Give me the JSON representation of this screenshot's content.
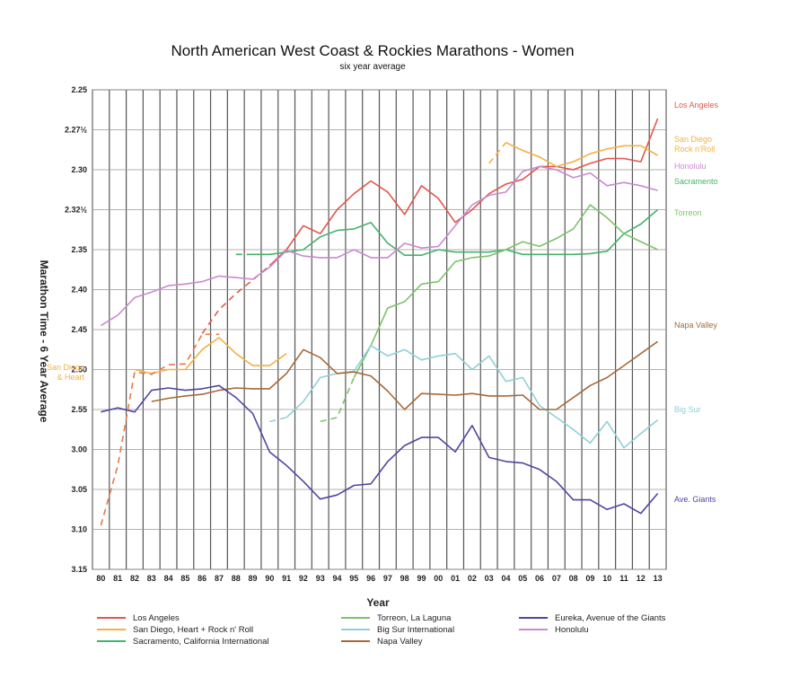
{
  "chart_data": {
    "type": "line",
    "title": "North American West Coast & Rockies Marathons - Women",
    "subtitle": "six year average",
    "xlabel": "Year",
    "ylabel": "Marathon Time - 6 Year Average",
    "x_ticks": [
      "80",
      "81",
      "82",
      "83",
      "84",
      "85",
      "86",
      "87",
      "88",
      "89",
      "90",
      "91",
      "92",
      "93",
      "94",
      "95",
      "96",
      "97",
      "98",
      "99",
      "00",
      "01",
      "02",
      "03",
      "04",
      "05",
      "06",
      "07",
      "08",
      "09",
      "10",
      "11",
      "12",
      "13"
    ],
    "y_ticks": [
      "2.25",
      "2.27½",
      "2.30",
      "2.32½",
      "2.35",
      "2.40",
      "2.45",
      "2.50",
      "2.55",
      "3.00",
      "3.05",
      "3.10",
      "3.15"
    ],
    "y_tick_values": [
      145,
      147.5,
      150,
      152.5,
      155,
      160,
      165,
      170,
      175,
      180,
      185,
      190,
      195
    ],
    "y_scale": "compressed near the top: 2.25 to 2.35 marked every 2½ minutes, then every 5 minutes",
    "y_inverted": true,
    "ylim": [
      145,
      195
    ],
    "grid": true,
    "series": [
      {
        "name": "Los Angeles",
        "end_label": "Los Angeles",
        "color": "#e2574c",
        "x": [
          1986,
          1987,
          1988,
          1989,
          1990,
          1991,
          1992,
          1993,
          1994,
          1995,
          1996,
          1997,
          1998,
          1999,
          2000,
          2001,
          2002,
          2003,
          2004,
          2005,
          2006,
          2007,
          2008,
          2009,
          2010,
          2011,
          2012,
          2013
        ],
        "y": [
          165.5,
          162.5,
          160.5,
          158.8,
          157,
          155,
          153.5,
          154,
          152.5,
          151.5,
          150.7,
          151.4,
          152.8,
          151,
          151.8,
          153.3,
          152.5,
          151.5,
          150.9,
          150.6,
          149.8,
          149.8,
          150,
          149.6,
          149.3,
          149.3,
          149.5,
          146.8
        ],
        "dashed_until": 1990
      },
      {
        "name": "San Diego, Heart + Rock n' Roll",
        "end_label": "San Diego Rock n'Roll",
        "color": "#f5b041",
        "x": [
          1982,
          1983,
          1984,
          1985,
          1986,
          1987,
          1988,
          1989,
          1990,
          1991
        ],
        "y": [
          170,
          170.5,
          170,
          170,
          167.5,
          166,
          168,
          169.5,
          169.5,
          168
        ],
        "x2": [
          2003,
          2004,
          2005,
          2006,
          2007,
          2008,
          2009,
          2010,
          2011,
          2012,
          2013
        ],
        "y2": [
          149.6,
          148.3,
          148.8,
          149.2,
          149.8,
          149.5,
          149,
          148.7,
          148.5,
          148.5,
          149.1
        ],
        "dashed_x2_until": 2004
      },
      {
        "name": "Sacramento, California International",
        "end_label": "Sacramento",
        "color": "#45b36b",
        "x": [
          1988,
          1989,
          1990,
          1991,
          1992,
          1993,
          1994,
          1995,
          1996,
          1997,
          1998,
          1999,
          2000,
          2001,
          2002,
          2003,
          2004,
          2005,
          2006,
          2007,
          2008,
          2009,
          2010,
          2011,
          2012,
          2013
        ],
        "y": [
          155.6,
          155.6,
          155.6,
          155.3,
          155,
          154.2,
          153.8,
          153.7,
          153.3,
          154.6,
          155.7,
          155.7,
          155,
          155.3,
          155.3,
          155.3,
          155,
          155.6,
          155.6,
          155.6,
          155.6,
          155.5,
          155.2,
          154,
          153.4,
          152.5
        ],
        "dashed_until": 1989
      },
      {
        "name": "Torreon, La Laguna",
        "end_label": "Torreon",
        "color": "#7dc36b",
        "x": [
          1993,
          1994,
          1995,
          1996,
          1997,
          1998,
          1999,
          2000,
          2001,
          2002,
          2003,
          2004,
          2005,
          2006,
          2007,
          2008,
          2009,
          2010,
          2011,
          2012,
          2013
        ],
        "y": [
          176.5,
          176,
          171,
          167,
          162.3,
          161.5,
          159.3,
          159,
          156.5,
          156,
          155.8,
          155,
          154.5,
          154.8,
          154.3,
          153.7,
          152.2,
          153,
          154,
          154.5,
          155
        ],
        "dashed_until": 1995
      },
      {
        "name": "Big Sur International",
        "end_label": "Big Sur",
        "color": "#8fd0d8",
        "x": [
          1990,
          1991,
          1992,
          1993,
          1994,
          1995,
          1996,
          1997,
          1998,
          1999,
          2000,
          2001,
          2002,
          2003,
          2004,
          2005,
          2006,
          2007,
          2008,
          2009,
          2010,
          2011,
          2012,
          2013
        ],
        "y": [
          176.5,
          176,
          174,
          171,
          170.5,
          170.2,
          167,
          168.3,
          167.5,
          168.8,
          168.3,
          168,
          170,
          168.3,
          171.5,
          171,
          174.5,
          176,
          177.5,
          179.2,
          176.5,
          179.8,
          178,
          176.3
        ],
        "dashed_until": 1991
      },
      {
        "name": "Napa Valley",
        "end_label": "Napa Valley",
        "color": "#a56a3a",
        "x": [
          1983,
          1984,
          1985,
          1986,
          1987,
          1988,
          1989,
          1990,
          1991,
          1992,
          1993,
          1994,
          1995,
          1996,
          1997,
          1998,
          1999,
          2000,
          2001,
          2002,
          2003,
          2004,
          2005,
          2006,
          2007,
          2008,
          2009,
          2010,
          2011,
          2012,
          2013
        ],
        "y": [
          174,
          173.6,
          173.3,
          173.1,
          172.6,
          172.3,
          172.4,
          172.4,
          170.5,
          167.5,
          168.5,
          170.5,
          170.3,
          170.8,
          172.7,
          175,
          173,
          173.1,
          173.2,
          173,
          173.3,
          173.3,
          173.2,
          175,
          175,
          173.5,
          172,
          171,
          169.5,
          168,
          166.5
        ],
        "dashed_until": 1983
      },
      {
        "name": "Eureka, Avenue of the Giants",
        "end_label": "Ave. Giants",
        "color": "#5046a0",
        "x": [
          1980,
          1981,
          1982,
          1983,
          1984,
          1985,
          1986,
          1987,
          1988,
          1989,
          1990,
          1991,
          1992,
          1993,
          1994,
          1995,
          1996,
          1997,
          1998,
          1999,
          2000,
          2001,
          2002,
          2003,
          2004,
          2005,
          2006,
          2007,
          2008,
          2009,
          2010,
          2011,
          2012,
          2013
        ],
        "y": [
          175.3,
          174.8,
          175.3,
          172.6,
          172.3,
          172.6,
          172.4,
          172,
          173.5,
          175.5,
          180.3,
          182,
          184,
          186.2,
          185.7,
          184.5,
          184.3,
          181.5,
          179.5,
          178.5,
          178.5,
          180.3,
          177,
          181,
          181.5,
          181.7,
          182.5,
          184,
          186.3,
          186.3,
          187.5,
          186.8,
          188,
          185.5
        ]
      },
      {
        "name": "Honolulu",
        "end_label": "Honolulu",
        "color": "#c98ad1",
        "x": [
          1980,
          1981,
          1982,
          1983,
          1984,
          1985,
          1986,
          1987,
          1988,
          1989,
          1990,
          1991,
          1992,
          1993,
          1994,
          1995,
          1996,
          1997,
          1998,
          1999,
          2000,
          2001,
          2002,
          2003,
          2004,
          2005,
          2006,
          2007,
          2008,
          2009,
          2010,
          2011,
          2012,
          2013
        ],
        "y": [
          164.5,
          163.2,
          161,
          160.3,
          159.5,
          159.3,
          159,
          158.3,
          158.5,
          158.7,
          157.2,
          155.1,
          155.8,
          156,
          156,
          155,
          156,
          156,
          154.6,
          154.9,
          154.8,
          153.5,
          152.2,
          151.6,
          151.4,
          150.1,
          149.8,
          150,
          150.5,
          150.2,
          151,
          150.8,
          151,
          151.3
        ]
      },
      {
        "name": "San Diego (early, dashed)",
        "end_label": "San Diego & Heart",
        "color": "#e27a4c",
        "x": [
          1980,
          1981,
          1982,
          1983,
          1984,
          1985,
          1986,
          1987
        ],
        "y": [
          189.5,
          182,
          170.3,
          170.6,
          169.4,
          169.3,
          165.6,
          165.6
        ],
        "dashed": true,
        "legend": false
      }
    ],
    "left_label": "San Diego & Heart",
    "legend": [
      {
        "name": "Los Angeles",
        "color": "#e2574c"
      },
      {
        "name": "San Diego, Heart + Rock n' Roll",
        "color": "#f5b041"
      },
      {
        "name": "Sacramento, California International",
        "color": "#45b36b"
      },
      {
        "name": "Torreon, La Laguna",
        "color": "#7dc36b"
      },
      {
        "name": "Big Sur International",
        "color": "#8fd0d8"
      },
      {
        "name": "Napa Valley",
        "color": "#a56a3a"
      },
      {
        "name": "Eureka, Avenue of the Giants",
        "color": "#5046a0"
      },
      {
        "name": "Honolulu",
        "color": "#c98ad1"
      }
    ],
    "legend_placement": "bottom"
  }
}
